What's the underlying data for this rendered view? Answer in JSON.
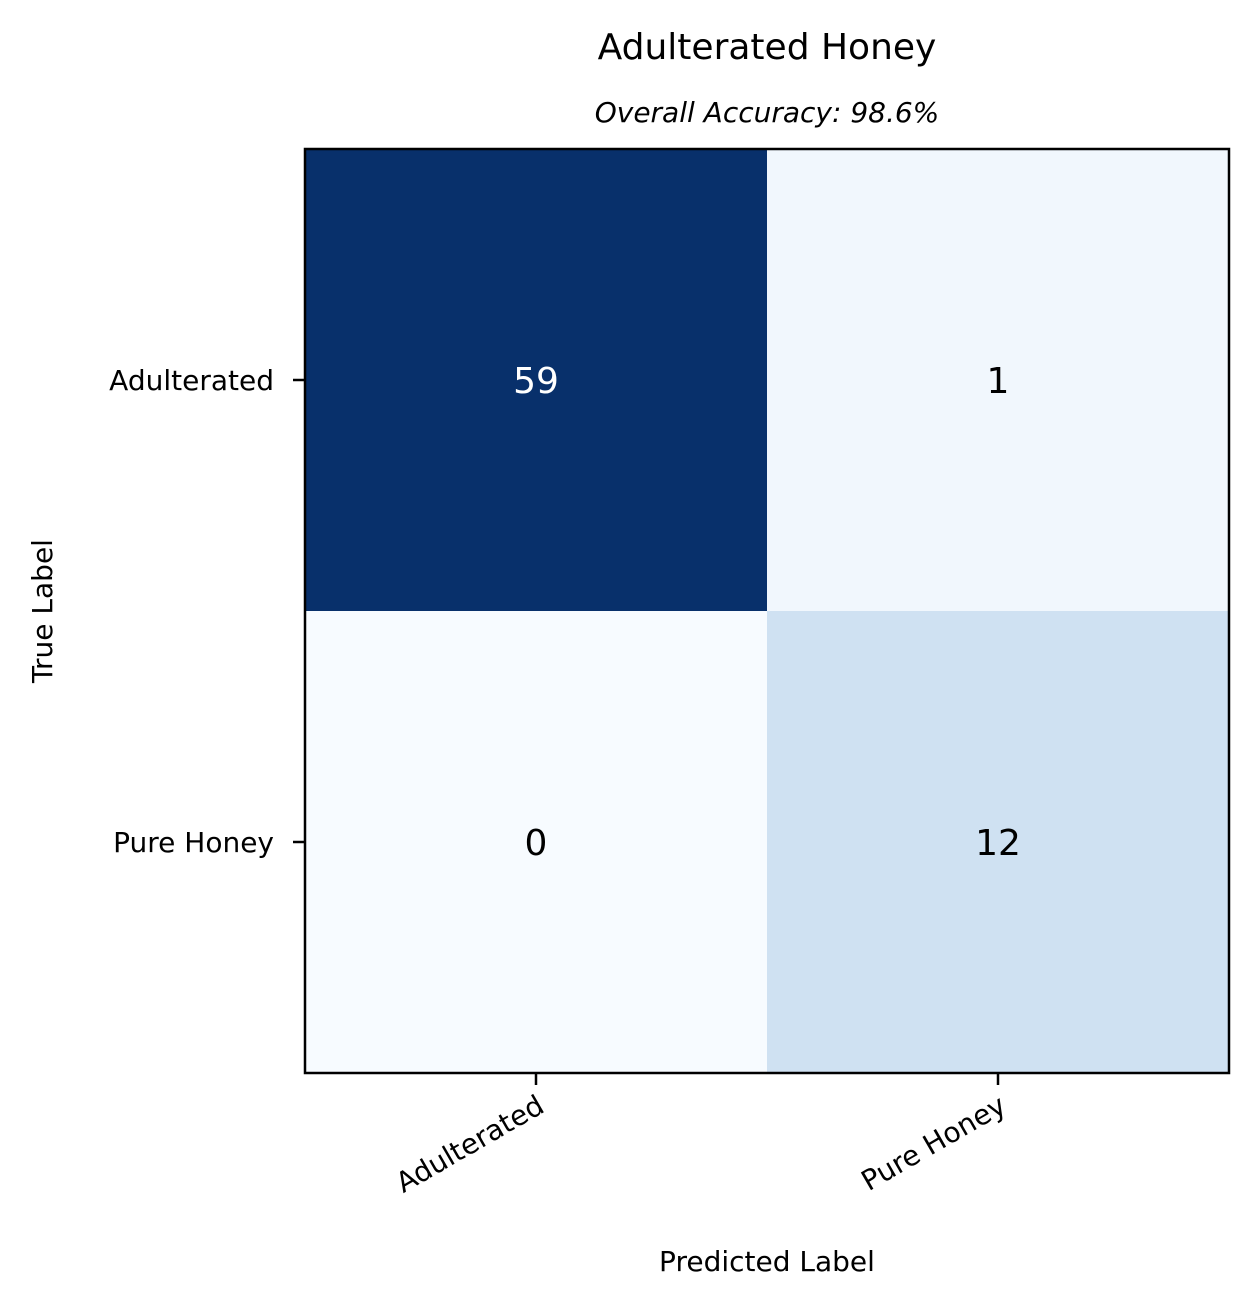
{
  "chart_data": {
    "type": "heatmap",
    "title": "Adulterated Honey",
    "subtitle": "Overall Accuracy: 98.6%",
    "xlabel": "Predicted Label",
    "ylabel": "True Label",
    "x_categories": [
      "Adulterated",
      "Pure Honey"
    ],
    "y_categories": [
      "Adulterated",
      "Pure Honey"
    ],
    "values": [
      [
        59,
        1
      ],
      [
        0,
        12
      ]
    ],
    "colormap": "Blues",
    "colors": {
      "59": "#08306b",
      "1": "#f1f7fd",
      "0": "#f7fbff",
      "12": "#cfe1f2",
      "text_dark_bg": "#ffffff",
      "text_light_bg": "#000000"
    }
  }
}
